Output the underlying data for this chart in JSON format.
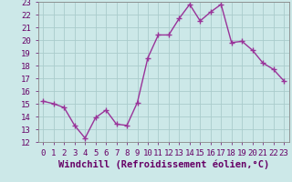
{
  "x": [
    0,
    1,
    2,
    3,
    4,
    5,
    6,
    7,
    8,
    9,
    10,
    11,
    12,
    13,
    14,
    15,
    16,
    17,
    18,
    19,
    20,
    21,
    22,
    23
  ],
  "y": [
    15.2,
    15.0,
    14.7,
    13.3,
    12.3,
    13.9,
    14.5,
    13.4,
    13.3,
    15.1,
    18.6,
    20.4,
    20.4,
    21.7,
    22.8,
    21.5,
    22.2,
    22.8,
    19.8,
    19.9,
    19.2,
    18.2,
    17.7,
    16.8
  ],
  "line_color": "#993399",
  "marker": "+",
  "marker_size": 4,
  "bg_color": "#cce8e8",
  "grid_color": "#aacccc",
  "xlabel": "Windchill (Refroidissement éolien,°C)",
  "xlabel_fontsize": 7.5,
  "ylim": [
    12,
    23
  ],
  "xlim": [
    -0.5,
    23.5
  ],
  "yticks": [
    12,
    13,
    14,
    15,
    16,
    17,
    18,
    19,
    20,
    21,
    22,
    23
  ],
  "xticks": [
    0,
    1,
    2,
    3,
    4,
    5,
    6,
    7,
    8,
    9,
    10,
    11,
    12,
    13,
    14,
    15,
    16,
    17,
    18,
    19,
    20,
    21,
    22,
    23
  ],
  "tick_fontsize": 6.5,
  "line_width": 1.0
}
